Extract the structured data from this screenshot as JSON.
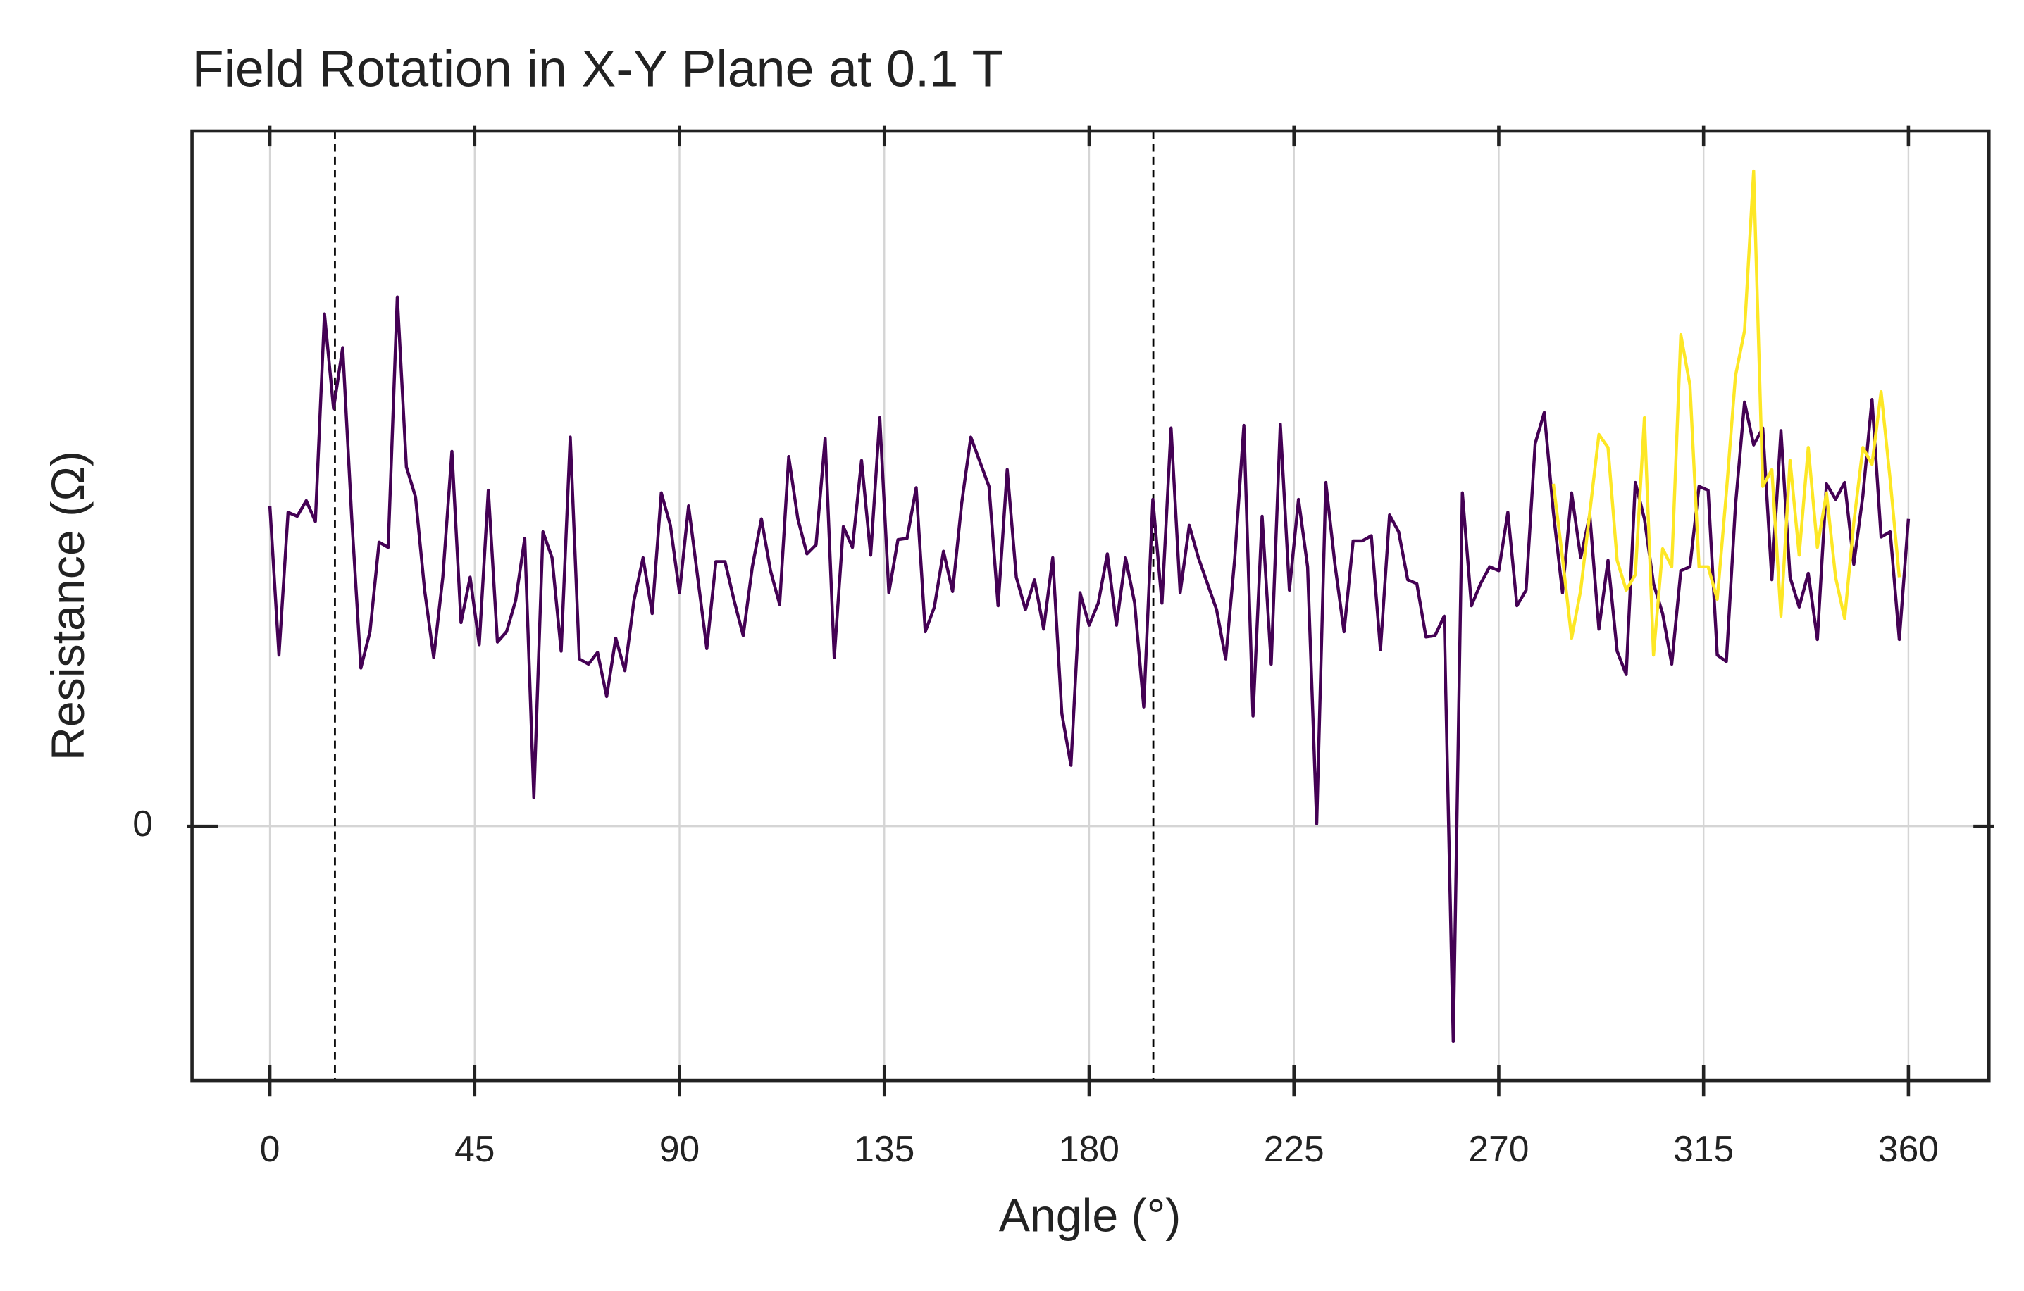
{
  "chart_data": {
    "type": "line",
    "title": "Field Rotation in X-Y Plane at 0.1 T",
    "x_label": "Angle (°)",
    "y_label": "Resistance (Ω)",
    "xlim": [
      -17.1,
      377.7
    ],
    "xticks": [
      0,
      45,
      90,
      135,
      180,
      225,
      270,
      315,
      360
    ],
    "ylim": [
      -0.98,
      2.68
    ],
    "yticks": [
      0
    ],
    "grid": true,
    "vlines": [
      14.3,
      194.1
    ],
    "series": [
      {
        "color": "#440154",
        "x": [
          0,
          2,
          4,
          6,
          8,
          10,
          12,
          14,
          16,
          18,
          20,
          22,
          24,
          26,
          28,
          30,
          32,
          34,
          36,
          38,
          40,
          42,
          44,
          46,
          48,
          50,
          52,
          54,
          56,
          58,
          60,
          62,
          64,
          66,
          68,
          70,
          72,
          74,
          76,
          78,
          80,
          82,
          84,
          86,
          88,
          90,
          92,
          94,
          96,
          98,
          100,
          102,
          104,
          106,
          108,
          110,
          112,
          114,
          116,
          118,
          120,
          122,
          124,
          126,
          128,
          130,
          132,
          134,
          136,
          138,
          140,
          142,
          144,
          146,
          148,
          150,
          152,
          154,
          156,
          158,
          160,
          162,
          164,
          166,
          168,
          170,
          172,
          174,
          176,
          178,
          180,
          182,
          184,
          186,
          188,
          190,
          192,
          194,
          196,
          198,
          200,
          202,
          204,
          206,
          208,
          210,
          212,
          214,
          216,
          218,
          220,
          222,
          224,
          226,
          228,
          230,
          232,
          234,
          236,
          238,
          240,
          242,
          244,
          246,
          248,
          250,
          252,
          254,
          256,
          258,
          260,
          262,
          264,
          266,
          268,
          270,
          272,
          274,
          276,
          278,
          280,
          282,
          284,
          286,
          288,
          290,
          292,
          294,
          296,
          298,
          300,
          302,
          304,
          306,
          308,
          310,
          312,
          314,
          316,
          318,
          320,
          322,
          324,
          326,
          328,
          330,
          332,
          334,
          336,
          338,
          340,
          342,
          344,
          346,
          348,
          350,
          352,
          354,
          356,
          358,
          360
        ],
        "values": [
          1.235,
          0.66,
          1.21,
          1.195,
          1.255,
          1.175,
          1.975,
          1.61,
          1.845,
          1.185,
          0.61,
          0.75,
          1.095,
          1.075,
          2.04,
          1.385,
          1.27,
          0.91,
          0.65,
          0.96,
          1.445,
          0.785,
          0.96,
          0.7,
          1.295,
          0.71,
          0.75,
          0.87,
          1.11,
          0.11,
          1.135,
          1.035,
          0.675,
          1.5,
          0.645,
          0.625,
          0.67,
          0.5,
          0.725,
          0.6,
          0.87,
          1.035,
          0.82,
          1.285,
          1.16,
          0.9,
          1.235,
          0.96,
          0.685,
          1.02,
          1.02,
          0.87,
          0.735,
          1.0,
          1.185,
          0.985,
          0.855,
          1.425,
          1.185,
          1.05,
          1.085,
          1.495,
          0.65,
          1.155,
          1.075,
          1.41,
          1.045,
          1.575,
          0.9,
          1.105,
          1.11,
          1.305,
          0.75,
          0.845,
          1.06,
          0.905,
          1.245,
          1.5,
          1.405,
          1.31,
          0.85,
          1.375,
          0.96,
          0.835,
          0.95,
          0.76,
          1.035,
          0.435,
          0.235,
          0.9,
          0.775,
          0.86,
          1.05,
          0.775,
          1.035,
          0.86,
          0.46,
          1.26,
          0.86,
          1.535,
          0.9,
          1.16,
          1.035,
          0.935,
          0.835,
          0.645,
          1.035,
          1.545,
          0.425,
          1.195,
          0.625,
          1.55,
          0.91,
          1.26,
          1.0,
          0.01,
          1.325,
          1.01,
          0.75,
          1.1,
          1.1,
          1.12,
          0.68,
          1.2,
          1.135,
          0.95,
          0.935,
          0.73,
          0.735,
          0.81,
          -0.83,
          1.285,
          0.85,
          0.935,
          1.0,
          0.985,
          1.21,
          0.85,
          0.91,
          1.475,
          1.595,
          1.21,
          0.9,
          1.285,
          1.035,
          1.2,
          0.76,
          1.025,
          0.675,
          0.585,
          1.325,
          1.185,
          0.935,
          0.82,
          0.625,
          0.985,
          1.0,
          1.31,
          1.295,
          0.66,
          0.635,
          1.235,
          1.635,
          1.47,
          1.535,
          0.95,
          1.525,
          0.96,
          0.845,
          0.975,
          0.72,
          1.32,
          1.26,
          1.325,
          1.01,
          1.275,
          1.645,
          1.115,
          1.135,
          0.72,
          1.185
        ]
      },
      {
        "color": "#fde725",
        "x": [
          282,
          284,
          286,
          288,
          290,
          292,
          294,
          296,
          298,
          300,
          302,
          304,
          306,
          308,
          310,
          312,
          314,
          316,
          318,
          320,
          322,
          324,
          326,
          328,
          330,
          332,
          334,
          336,
          338,
          340,
          342,
          344,
          346,
          348,
          350,
          352,
          354,
          356,
          358
        ],
        "values": [
          1.32,
          1.035,
          0.725,
          0.91,
          1.21,
          1.51,
          1.46,
          1.025,
          0.91,
          0.97,
          1.575,
          0.66,
          1.07,
          1.0,
          1.895,
          1.7,
          1.0,
          1.0,
          0.875,
          1.285,
          1.735,
          1.91,
          2.525,
          1.31,
          1.375,
          0.81,
          1.41,
          1.045,
          1.46,
          1.075,
          1.285,
          0.96,
          0.8,
          1.17,
          1.46,
          1.395,
          1.675,
          1.335,
          0.96
        ]
      }
    ]
  }
}
